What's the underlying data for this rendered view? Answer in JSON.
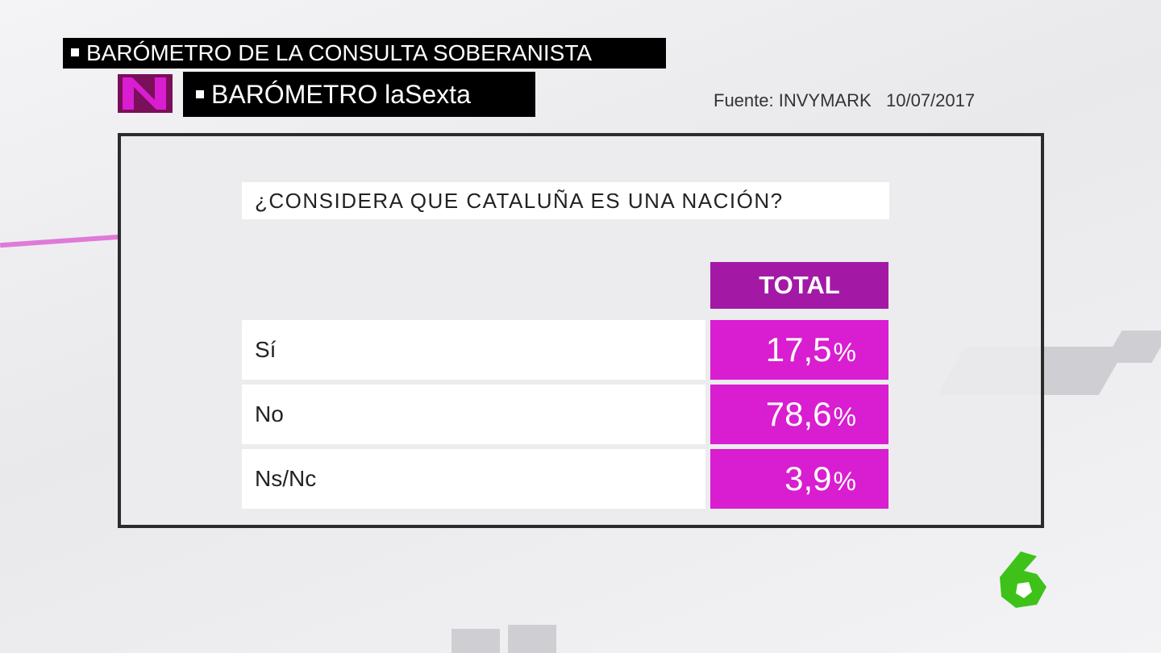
{
  "header": {
    "title": "BARÓMETRO DE LA CONSULTA SOBERANISTA",
    "subtitle": "BARÓMETRO laSexta",
    "source": "Fuente: INVYMARK",
    "date": "10/07/2017"
  },
  "question": "¿CONSIDERA QUE CATALUÑA ES UNA NACIÓN?",
  "table": {
    "column": "TOTAL",
    "rows": [
      {
        "label": "Sí",
        "value": "17,5",
        "unit": "%"
      },
      {
        "label": "No",
        "value": "78,6",
        "unit": "%"
      },
      {
        "label": "Ns/Nc",
        "value": "3,9",
        "unit": "%"
      }
    ]
  }
}
